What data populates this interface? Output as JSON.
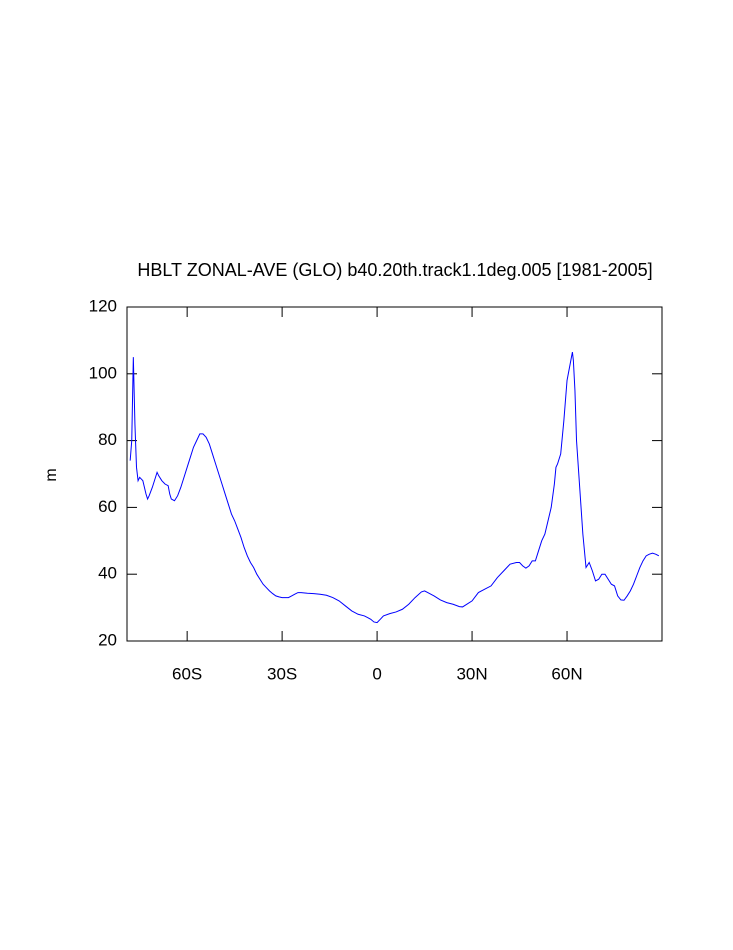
{
  "chart_data": {
    "type": "line",
    "title": "HBLT ZONAL-AVE (GLO) b40.20th.track1.1deg.005 [1981-2005]",
    "y_label": "m",
    "xlim": [
      -79,
      90
    ],
    "xticks": [
      {
        "value": -60,
        "label": "60S"
      },
      {
        "value": -30,
        "label": "30S"
      },
      0,
      {
        "value": 30,
        "label": "30N"
      },
      {
        "value": 60,
        "label": "60N"
      }
    ],
    "ylim": [
      20,
      120
    ],
    "yticks": [
      20,
      40,
      60,
      80,
      100,
      120
    ],
    "grid": false,
    "series": [
      {
        "color": "#0000ff",
        "x": [
          -78,
          -77.5,
          -77,
          -76.5,
          -76,
          -75.5,
          -75,
          -74,
          -73,
          -72.5,
          -72,
          -71,
          -70,
          -69.5,
          -69,
          -68,
          -67,
          -66,
          -65.5,
          -65,
          -64,
          -63,
          -62,
          -61,
          -60,
          -59,
          -58,
          -57,
          -56,
          -55,
          -54,
          -53,
          -52,
          -51,
          -50,
          -49,
          -48,
          -47,
          -46,
          -45,
          -44,
          -43,
          -42,
          -41,
          -40,
          -39,
          -38,
          -37,
          -36,
          -35,
          -34,
          -33,
          -32,
          -31,
          -30,
          -29,
          -28,
          -27,
          -26,
          -25,
          -24,
          -22,
          -20,
          -18,
          -16,
          -14,
          -12,
          -10,
          -8,
          -6,
          -4,
          -3,
          -2,
          -1,
          0,
          1,
          2,
          4,
          6,
          8,
          10,
          12,
          14,
          15,
          16,
          18,
          20,
          22,
          24,
          26,
          27,
          28,
          30,
          32,
          34,
          36,
          38,
          40,
          42,
          44,
          45,
          46,
          47,
          48,
          49,
          50,
          51,
          52,
          53,
          54,
          55,
          56,
          56.5,
          57,
          58,
          59,
          60,
          61,
          61.7,
          62,
          62.5,
          63,
          64,
          65,
          66,
          67,
          68,
          69,
          70,
          71,
          72,
          73,
          74,
          75,
          76,
          77,
          78,
          79,
          80,
          81,
          82,
          83,
          84,
          85,
          86,
          87,
          88,
          89
        ],
        "values": [
          74,
          80,
          105,
          85,
          72,
          68,
          69,
          68,
          64,
          62.5,
          63.5,
          66,
          69,
          70.5,
          69.5,
          68,
          67,
          66.5,
          64,
          62.5,
          62,
          63.5,
          66,
          69,
          72,
          75,
          78,
          80,
          82,
          82,
          81,
          79,
          76,
          73,
          70,
          67,
          64,
          61,
          58,
          56,
          53.5,
          51,
          48,
          45.5,
          43.5,
          42,
          40,
          38.5,
          37,
          36,
          35,
          34.2,
          33.5,
          33.2,
          33,
          33,
          33,
          33.5,
          34,
          34.5,
          34.5,
          34.3,
          34.2,
          34,
          33.7,
          33,
          32,
          30.5,
          29,
          28,
          27.5,
          27,
          26.5,
          25.7,
          25.5,
          26.5,
          27.5,
          28.2,
          28.7,
          29.5,
          31,
          33,
          34.7,
          35,
          34.5,
          33.5,
          32.3,
          31.5,
          31,
          30.3,
          30.2,
          30.8,
          32,
          34.5,
          35.5,
          36.5,
          39,
          41,
          43,
          43.5,
          43.5,
          42.5,
          41.8,
          42.5,
          44,
          44,
          47,
          50,
          52,
          56,
          60,
          67,
          72,
          73,
          76,
          86,
          98,
          103,
          106.5,
          104,
          95,
          80,
          66,
          52,
          42,
          43.5,
          41,
          38,
          38.5,
          40,
          40,
          38.5,
          37,
          36.5,
          33.5,
          32.3,
          32.2,
          33.5,
          35,
          37,
          39.5,
          42,
          44,
          45.5,
          46,
          46.3,
          46,
          45.5
        ]
      }
    ]
  }
}
